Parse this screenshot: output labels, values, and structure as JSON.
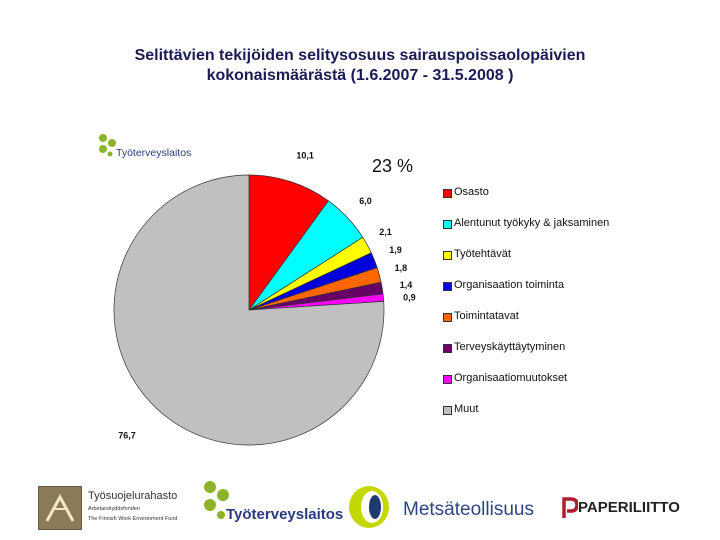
{
  "title": {
    "line1": "Selittävien tekijöiden selitysosuus sairauspoissaolopäivien",
    "line2": "kokonaismäärästä (1.6.2007 - 31.5.2008 )"
  },
  "annotation": "23 %",
  "chart_logo": "Työterveyslaitos",
  "chart_data": {
    "type": "pie",
    "title": "",
    "categories": [
      "Osasto",
      "Alentunut työkyky & jaksaminen",
      "Työtehtävät",
      "Organisaation toiminta",
      "Toimintatavat",
      "Terveyskäyttäytyminen",
      "Organisaatiomuutokset",
      "Muut"
    ],
    "values": [
      10.1,
      6.0,
      2.1,
      1.9,
      1.8,
      1.4,
      0.9,
      76.7
    ],
    "data_labels": [
      "10,1",
      "6,0",
      "2,1",
      "1,9",
      "1,8",
      "1,4",
      "0,9",
      "76,7"
    ],
    "colors": [
      "#ff0000",
      "#00ffff",
      "#ffff00",
      "#0000dd",
      "#ff6600",
      "#660066",
      "#ff00ff",
      "#c0c0c0"
    ],
    "legend_position": "right"
  },
  "footer": {
    "logo1_name": "Työsuojelurahasto",
    "logo1_sub1": "Arbetarskyddsfonden",
    "logo1_sub2": "The Finnish Work Environment Fund",
    "logo2_name": "Työterveyslaitos",
    "logo3_name": "Metsäteollisuus",
    "logo4_name": "PAPERILIITTO"
  }
}
